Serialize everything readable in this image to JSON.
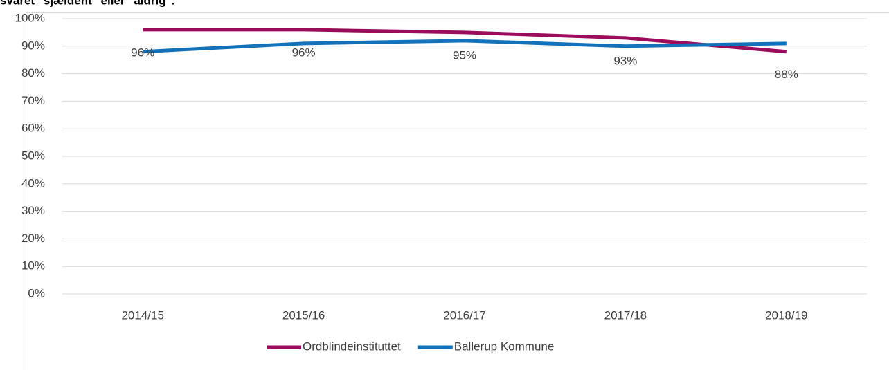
{
  "chart_data": {
    "type": "line",
    "title": "svaret \"sjældent\" eller \"aldrig\".",
    "categories": [
      "2014/15",
      "2015/16",
      "2016/17",
      "2017/18",
      "2018/19"
    ],
    "series": [
      {
        "name": "Ordblindeinstituttet",
        "color": "#9b0d5c",
        "values": [
          96,
          96,
          95,
          93,
          88
        ],
        "value_labels": [
          "96%",
          "96%",
          "95%",
          "93%",
          "88%"
        ]
      },
      {
        "name": "Ballerup Kommune",
        "color": "#1271b8",
        "values": [
          88,
          91,
          92,
          90,
          91
        ]
      }
    ],
    "ylim": [
      0,
      100
    ],
    "yticks": [
      {
        "value": 0,
        "label": "0%"
      },
      {
        "value": 10,
        "label": "10%"
      },
      {
        "value": 20,
        "label": "20%"
      },
      {
        "value": 30,
        "label": "30%"
      },
      {
        "value": 40,
        "label": "40%"
      },
      {
        "value": 50,
        "label": "50%"
      },
      {
        "value": 60,
        "label": "60%"
      },
      {
        "value": 70,
        "label": "70%"
      },
      {
        "value": 80,
        "label": "80%"
      },
      {
        "value": 90,
        "label": "90%"
      },
      {
        "value": 100,
        "label": "100%"
      }
    ],
    "grid": true,
    "legend": "bottom"
  }
}
